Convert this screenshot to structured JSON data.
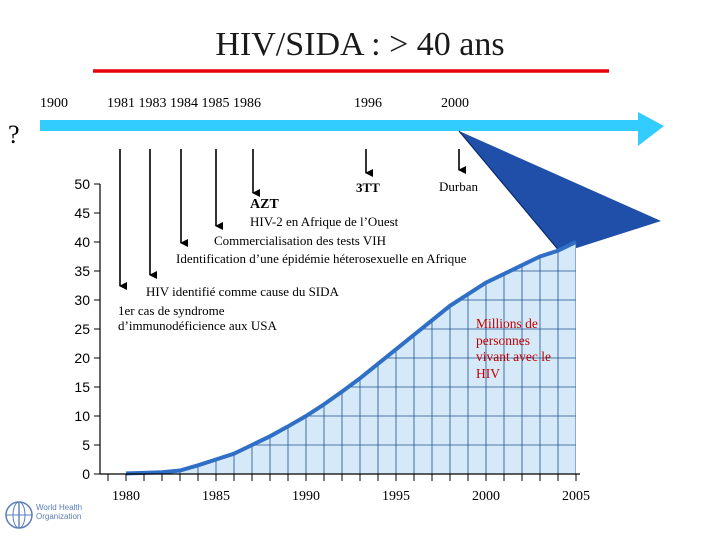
{
  "title": "HIV/SIDA : > 40 ans",
  "question_mark": "?",
  "timeline": {
    "year_labels": [
      "1900",
      "1981 1983 1984 1985 1986",
      "1996",
      "2000"
    ]
  },
  "events": {
    "tritherapy": "3TT",
    "durban": "Durban",
    "azt": "AZT",
    "hiv2": "HIV-2 en Afrique de l’Ouest",
    "tests": "Commercialisation des tests VIH",
    "hetero": "Identification d’une épidémie héterosexuelle en Afrique",
    "hiv_cause": "HIV identifié comme cause du SIDA",
    "first_case_line1": "1er cas de syndrome",
    "first_case_line2": "d’immunodéficience aux USA"
  },
  "series_label": "Millions de personnes vivant avec le HIV",
  "logo": {
    "line1": "World Health",
    "line2": "Organization"
  },
  "colors": {
    "title_rule": "#e8000a",
    "timeline_arrow": "#33ccff",
    "area_fill": "#d6e9f8",
    "grid": "#1f4f8f",
    "curve": "#2f6fc6",
    "triangle": "#1f4fa8",
    "annotation": "#c00000"
  },
  "chart_data": {
    "type": "area",
    "title": "",
    "xlabel": "",
    "ylabel": "",
    "xlim": [
      1979,
      2005
    ],
    "ylim": [
      0,
      50
    ],
    "x_ticks": [
      1980,
      1985,
      1990,
      1995,
      2000,
      2005
    ],
    "y_ticks": [
      0,
      5,
      10,
      15,
      20,
      25,
      30,
      35,
      40,
      45,
      50
    ],
    "grid": true,
    "series": [
      {
        "x": [
          1980,
          1981,
          1982,
          1983,
          1984,
          1985,
          1986,
          1987,
          1988,
          1989,
          1990,
          1991,
          1992,
          1993,
          1994,
          1995,
          1996,
          1997,
          1998,
          1999,
          2000,
          2001,
          2002,
          2003,
          2004,
          2005
        ],
        "values": [
          0.1,
          0.2,
          0.3,
          0.6,
          1.5,
          2.5,
          3.5,
          5.0,
          6.5,
          8.2,
          10.0,
          12.0,
          14.2,
          16.5,
          19.0,
          21.5,
          24.0,
          26.5,
          29.0,
          31.0,
          33.0,
          34.5,
          36.0,
          37.5,
          38.5,
          40.0
        ]
      }
    ]
  }
}
